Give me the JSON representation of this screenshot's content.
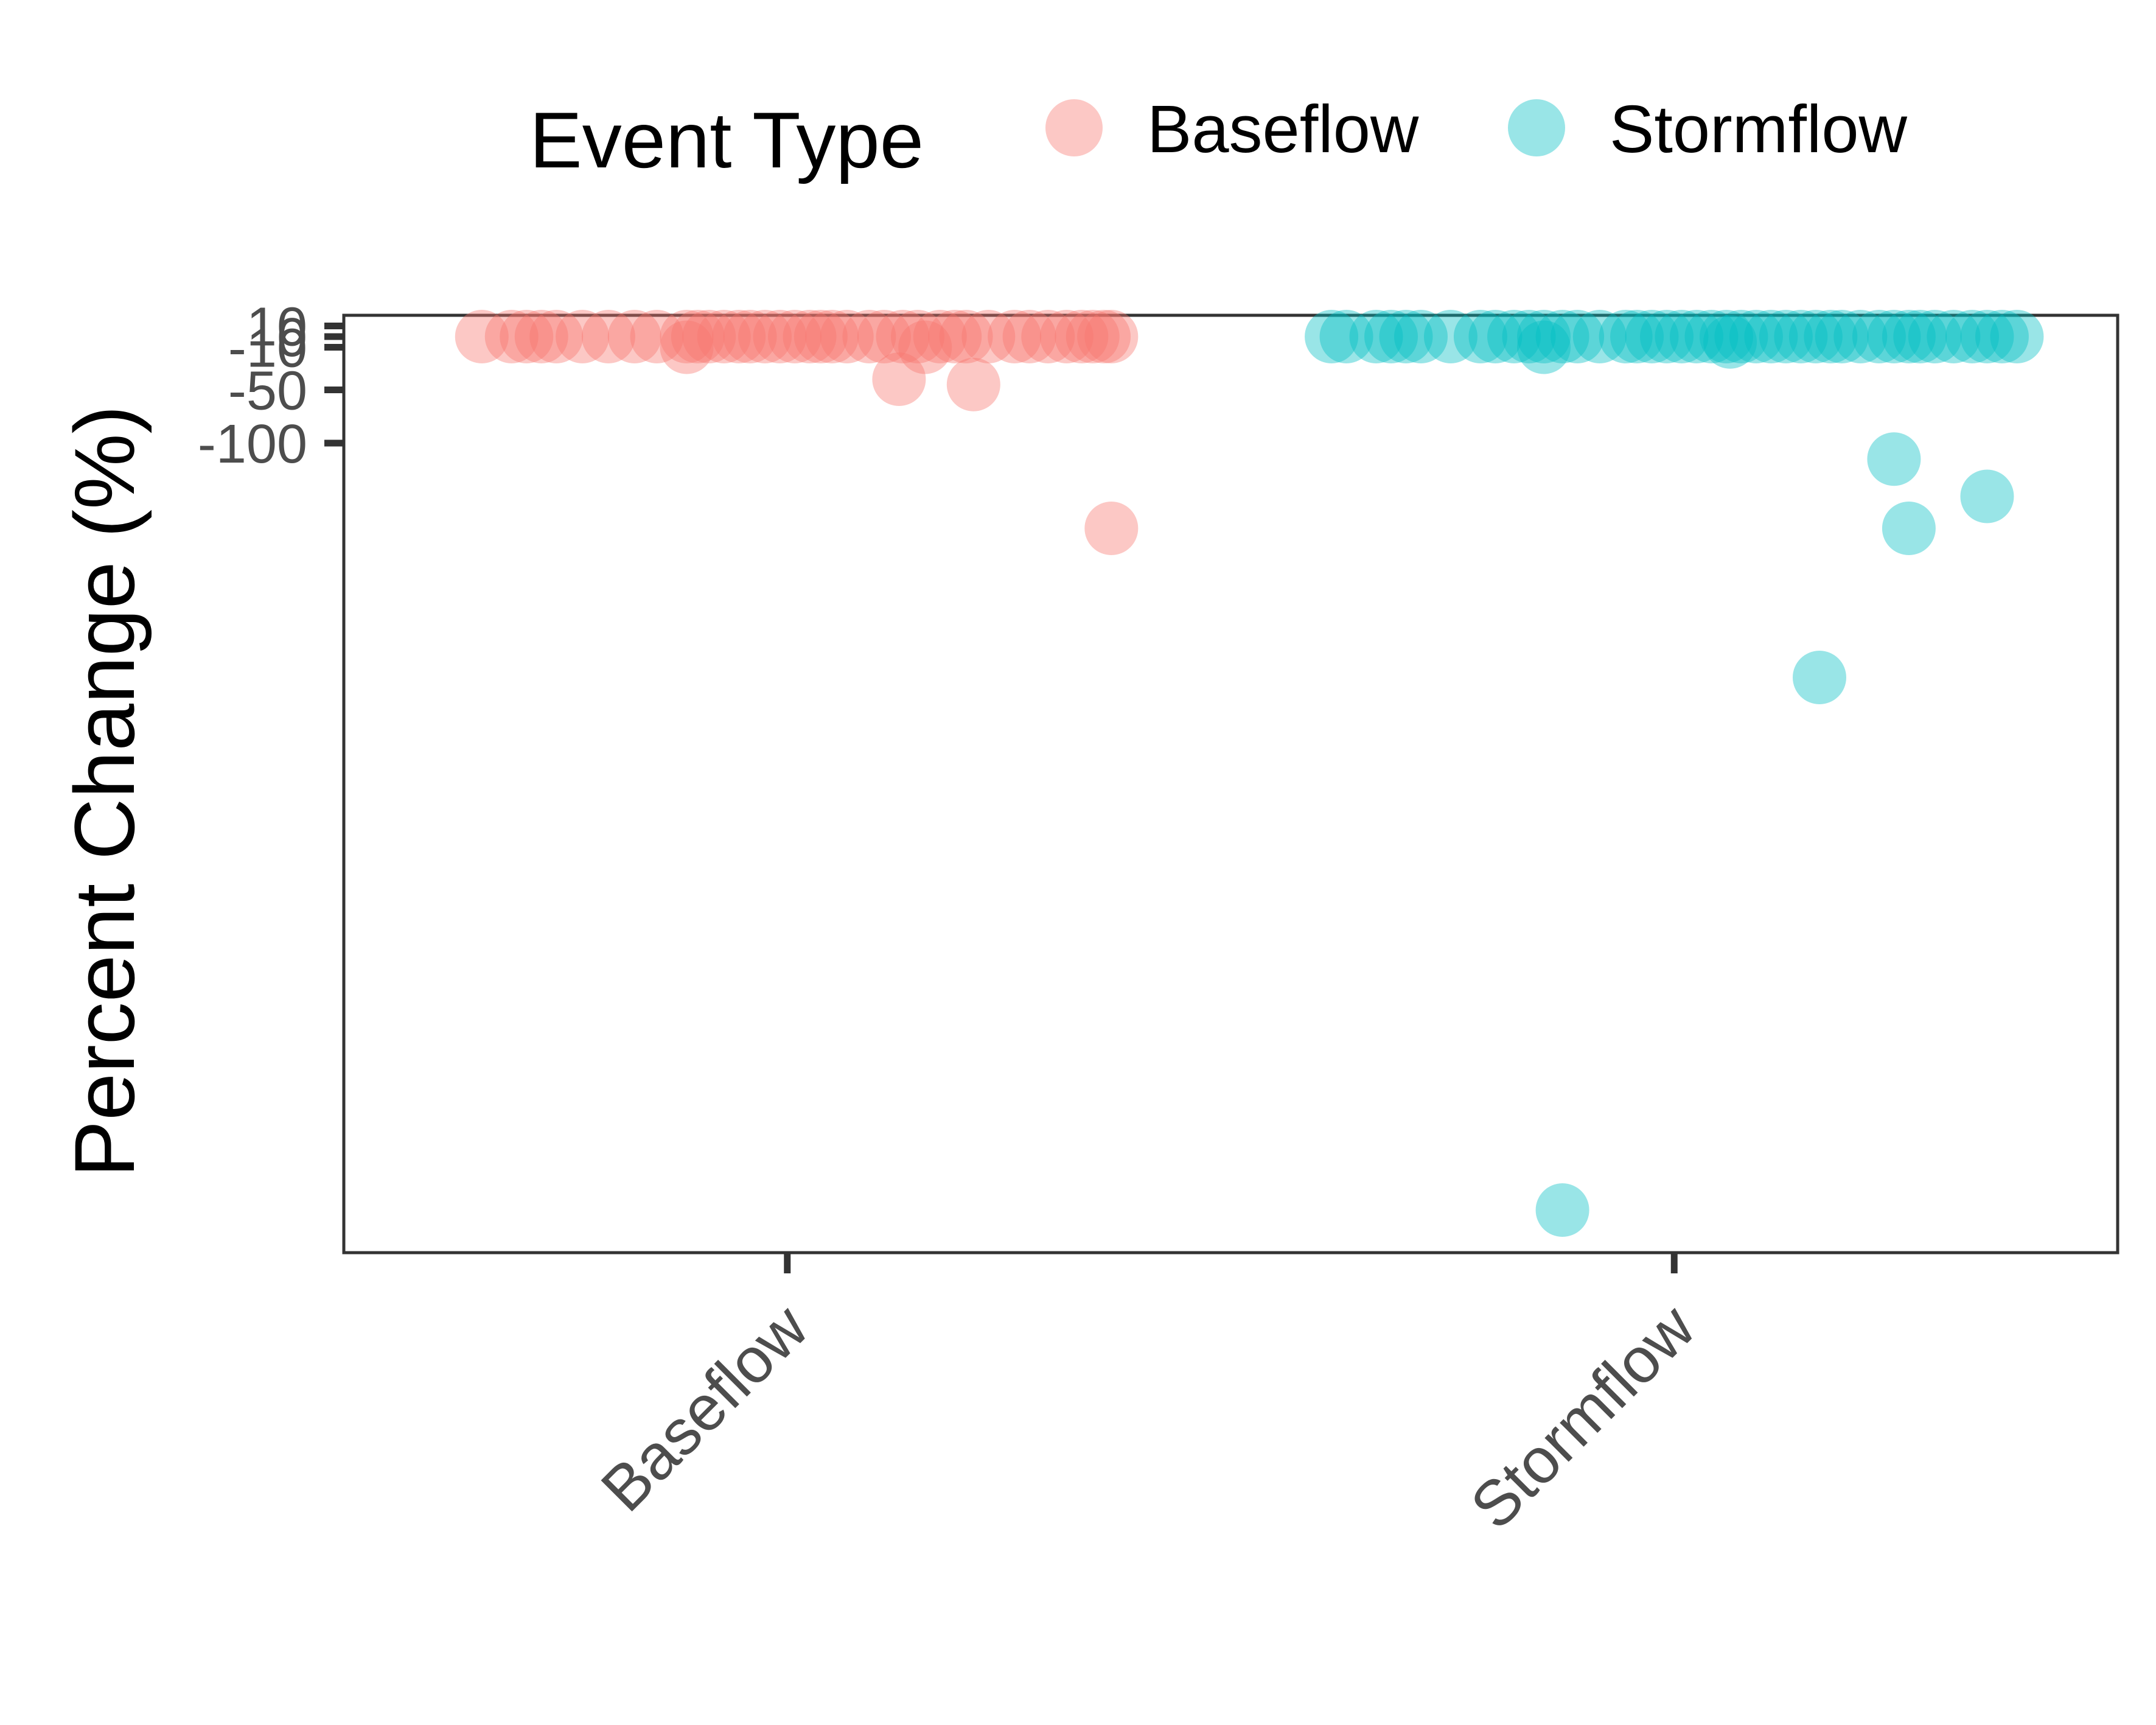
{
  "legend": {
    "title": "Event Type",
    "position": "top",
    "items": [
      {
        "label": "Baseflow",
        "color": "#F8766D"
      },
      {
        "label": "Stormflow",
        "color": "#00BFC4"
      }
    ]
  },
  "chart_data": {
    "type": "scatter",
    "title": "",
    "xlabel": "",
    "ylabel": "Percent Change (%)",
    "categories": [
      "Baseflow",
      "Stormflow"
    ],
    "y_ticks": [
      10,
      0,
      -10,
      -50,
      -100
    ],
    "y_tick_labels": [
      "10",
      "0",
      "-10",
      "-50",
      "-100"
    ],
    "ylim": [
      -860,
      20
    ],
    "grid": false,
    "jitter_width": 0.42,
    "point_opacity": 0.4,
    "series": [
      {
        "name": "Baseflow",
        "category": "Baseflow",
        "color": "#F8766D",
        "points": [
          {
            "j": -0.82,
            "y": 0
          },
          {
            "j": -0.74,
            "y": 0
          },
          {
            "j": -0.7,
            "y": 0
          },
          {
            "j": -0.66,
            "y": 0
          },
          {
            "j": -0.62,
            "y": 0
          },
          {
            "j": -0.55,
            "y": 0
          },
          {
            "j": -0.48,
            "y": 0
          },
          {
            "j": -0.41,
            "y": 0
          },
          {
            "j": -0.35,
            "y": 0
          },
          {
            "j": -0.27,
            "y": 0
          },
          {
            "j": -0.24,
            "y": 0
          },
          {
            "j": -0.21,
            "y": 0
          },
          {
            "j": -0.17,
            "y": 0
          },
          {
            "j": -0.13,
            "y": 0
          },
          {
            "j": -0.1,
            "y": 0
          },
          {
            "j": -0.06,
            "y": 0
          },
          {
            "j": -0.02,
            "y": 0
          },
          {
            "j": 0.02,
            "y": 0
          },
          {
            "j": 0.06,
            "y": 0
          },
          {
            "j": 0.09,
            "y": 0
          },
          {
            "j": 0.12,
            "y": 0
          },
          {
            "j": 0.16,
            "y": 0
          },
          {
            "j": 0.22,
            "y": 0
          },
          {
            "j": 0.26,
            "y": 0
          },
          {
            "j": 0.31,
            "y": 0
          },
          {
            "j": 0.35,
            "y": 0
          },
          {
            "j": 0.41,
            "y": 0
          },
          {
            "j": 0.45,
            "y": 0
          },
          {
            "j": 0.48,
            "y": 0
          },
          {
            "j": 0.54,
            "y": 0
          },
          {
            "j": 0.61,
            "y": 0
          },
          {
            "j": 0.65,
            "y": 0
          },
          {
            "j": 0.7,
            "y": 0
          },
          {
            "j": 0.75,
            "y": 0
          },
          {
            "j": 0.79,
            "y": 0
          },
          {
            "j": 0.82,
            "y": 0
          },
          {
            "j": 0.85,
            "y": 0
          },
          {
            "j": 0.87,
            "y": 0
          },
          {
            "j": -0.27,
            "y": -10
          },
          {
            "j": 0.37,
            "y": -10
          },
          {
            "j": 0.3,
            "y": -40
          },
          {
            "j": 0.5,
            "y": -45
          },
          {
            "j": 0.87,
            "y": -180
          }
        ]
      },
      {
        "name": "Stormflow",
        "category": "Stormflow",
        "color": "#00BFC4",
        "points": [
          {
            "j": -0.92,
            "y": 0
          },
          {
            "j": -0.88,
            "y": 0
          },
          {
            "j": -0.8,
            "y": 0
          },
          {
            "j": -0.76,
            "y": 0
          },
          {
            "j": -0.72,
            "y": 0
          },
          {
            "j": -0.68,
            "y": 0
          },
          {
            "j": -0.6,
            "y": 0
          },
          {
            "j": -0.52,
            "y": 0
          },
          {
            "j": -0.48,
            "y": 0
          },
          {
            "j": -0.43,
            "y": 0
          },
          {
            "j": -0.39,
            "y": 0
          },
          {
            "j": -0.35,
            "y": 0
          },
          {
            "j": -0.3,
            "y": 0
          },
          {
            "j": -0.26,
            "y": 0
          },
          {
            "j": -0.2,
            "y": 0
          },
          {
            "j": -0.13,
            "y": 0
          },
          {
            "j": -0.1,
            "y": 0
          },
          {
            "j": -0.06,
            "y": 0
          },
          {
            "j": -0.02,
            "y": 0
          },
          {
            "j": 0.02,
            "y": 0
          },
          {
            "j": 0.06,
            "y": 0
          },
          {
            "j": 0.1,
            "y": 0
          },
          {
            "j": 0.14,
            "y": 0
          },
          {
            "j": 0.18,
            "y": 0
          },
          {
            "j": 0.22,
            "y": 0
          },
          {
            "j": 0.26,
            "y": 0
          },
          {
            "j": 0.3,
            "y": 0
          },
          {
            "j": 0.34,
            "y": 0
          },
          {
            "j": 0.38,
            "y": 0
          },
          {
            "j": 0.42,
            "y": 0
          },
          {
            "j": 0.45,
            "y": 0
          },
          {
            "j": 0.5,
            "y": 0
          },
          {
            "j": 0.55,
            "y": 0
          },
          {
            "j": 0.59,
            "y": 0
          },
          {
            "j": 0.63,
            "y": 0
          },
          {
            "j": 0.66,
            "y": 0
          },
          {
            "j": 0.7,
            "y": 0
          },
          {
            "j": 0.75,
            "y": 0
          },
          {
            "j": 0.8,
            "y": 0
          },
          {
            "j": 0.84,
            "y": 0
          },
          {
            "j": 0.88,
            "y": 0
          },
          {
            "j": 0.92,
            "y": 0
          },
          {
            "j": -0.35,
            "y": -10
          },
          {
            "j": 0.15,
            "y": -5
          },
          {
            "j": 0.59,
            "y": -115
          },
          {
            "j": 0.84,
            "y": -150
          },
          {
            "j": 0.63,
            "y": -180
          },
          {
            "j": 0.39,
            "y": -320
          },
          {
            "j": -0.3,
            "y": -820
          }
        ]
      }
    ]
  }
}
